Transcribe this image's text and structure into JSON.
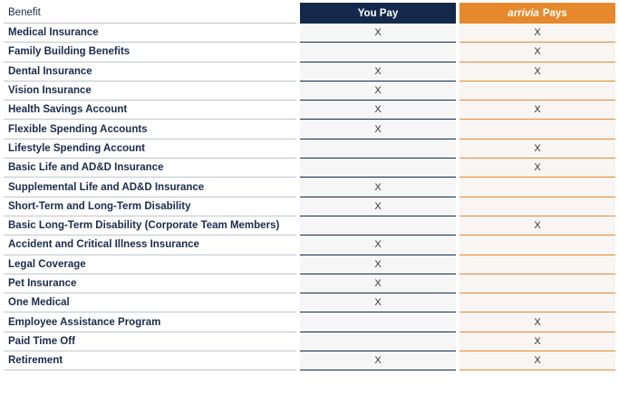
{
  "header": {
    "benefit_label": "Benefit",
    "you_pay_label": "You Pay",
    "company_brand": "arrivia",
    "company_pays_suffix": "Pays"
  },
  "colors": {
    "you_pay_header": "#14284b",
    "company_header": "#e6892c",
    "benefit_text": "#1a2b4c"
  },
  "rows": [
    {
      "benefit": "Medical Insurance",
      "you_pay": "X",
      "company_pays": "X"
    },
    {
      "benefit": "Family Building Benefits",
      "you_pay": "",
      "company_pays": "X"
    },
    {
      "benefit": "Dental Insurance",
      "you_pay": "X",
      "company_pays": "X"
    },
    {
      "benefit": "Vision Insurance",
      "you_pay": "X",
      "company_pays": ""
    },
    {
      "benefit": "Health Savings Account",
      "you_pay": "X",
      "company_pays": "X"
    },
    {
      "benefit": "Flexible Spending Accounts",
      "you_pay": "X",
      "company_pays": ""
    },
    {
      "benefit": "Lifestyle Spending Account",
      "you_pay": "",
      "company_pays": "X"
    },
    {
      "benefit": "Basic Life and AD&D Insurance",
      "you_pay": "",
      "company_pays": "X"
    },
    {
      "benefit": "Supplemental Life and AD&D Insurance",
      "you_pay": "X",
      "company_pays": ""
    },
    {
      "benefit": "Short-Term and Long-Term Disability",
      "you_pay": "X",
      "company_pays": ""
    },
    {
      "benefit": "Basic Long-Term Disability (Corporate Team Members)",
      "you_pay": "",
      "company_pays": "X"
    },
    {
      "benefit": "Accident and Critical Illness Insurance",
      "you_pay": "X",
      "company_pays": ""
    },
    {
      "benefit": "Legal Coverage",
      "you_pay": "X",
      "company_pays": ""
    },
    {
      "benefit": "Pet Insurance",
      "you_pay": "X",
      "company_pays": ""
    },
    {
      "benefit": "One Medical",
      "you_pay": "X",
      "company_pays": ""
    },
    {
      "benefit": "Employee Assistance Program",
      "you_pay": "",
      "company_pays": "X"
    },
    {
      "benefit": "Paid Time Off",
      "you_pay": "",
      "company_pays": "X"
    },
    {
      "benefit": "Retirement",
      "you_pay": "X",
      "company_pays": "X"
    }
  ]
}
